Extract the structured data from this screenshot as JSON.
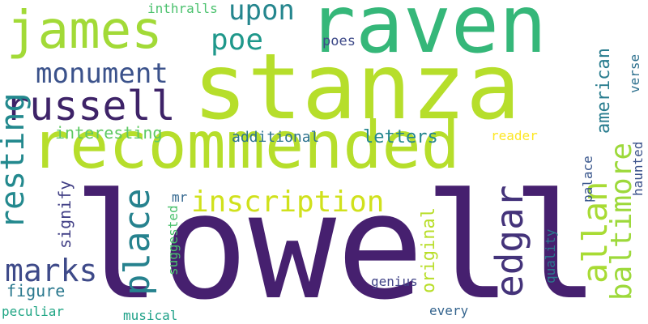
{
  "words": [
    {
      "text": "lowell",
      "color": "#46206f"
    },
    {
      "text": "stanza",
      "color": "#b6de2b"
    },
    {
      "text": "raven",
      "color": "#35b779"
    },
    {
      "text": "recommended",
      "color": "#b6de2b"
    },
    {
      "text": "james",
      "color": "#a2da37"
    },
    {
      "text": "russell",
      "color": "#3e2368"
    },
    {
      "text": "upon",
      "color": "#25868e"
    },
    {
      "text": "poe",
      "color": "#1f988b"
    },
    {
      "text": "monument",
      "color": "#3b528b"
    },
    {
      "text": "inscription",
      "color": "#d0e11c"
    },
    {
      "text": "resting",
      "color": "#23898e"
    },
    {
      "text": "marks",
      "color": "#3e4a89"
    },
    {
      "text": "place",
      "color": "#26828e"
    },
    {
      "text": "interesting",
      "color": "#5ec962"
    },
    {
      "text": "letters",
      "color": "#24868e"
    },
    {
      "text": "edgar",
      "color": "#44337a"
    },
    {
      "text": "allan",
      "color": "#a8db34"
    },
    {
      "text": "baltimore",
      "color": "#9dd93b"
    },
    {
      "text": "american",
      "color": "#287c8e"
    },
    {
      "text": "inthralls",
      "color": "#4ac16d"
    },
    {
      "text": "poes",
      "color": "#3e4a89"
    },
    {
      "text": "verse",
      "color": "#2d708e"
    },
    {
      "text": "additional",
      "color": "#2c728e"
    },
    {
      "text": "reader",
      "color": "#fde725"
    },
    {
      "text": "haunted",
      "color": "#3b528b"
    },
    {
      "text": "signify",
      "color": "#424086"
    },
    {
      "text": "suggested",
      "color": "#4ac16d"
    },
    {
      "text": "mr",
      "color": "#31668e"
    },
    {
      "text": "original",
      "color": "#b8de29"
    },
    {
      "text": "palace",
      "color": "#39568c"
    },
    {
      "text": "quality",
      "color": "#2a788e"
    },
    {
      "text": "figure",
      "color": "#2a788e"
    },
    {
      "text": "genius",
      "color": "#414487"
    },
    {
      "text": "peculiar",
      "color": "#21a685"
    },
    {
      "text": "musical",
      "color": "#1fa188"
    },
    {
      "text": "every",
      "color": "#33638d"
    }
  ]
}
